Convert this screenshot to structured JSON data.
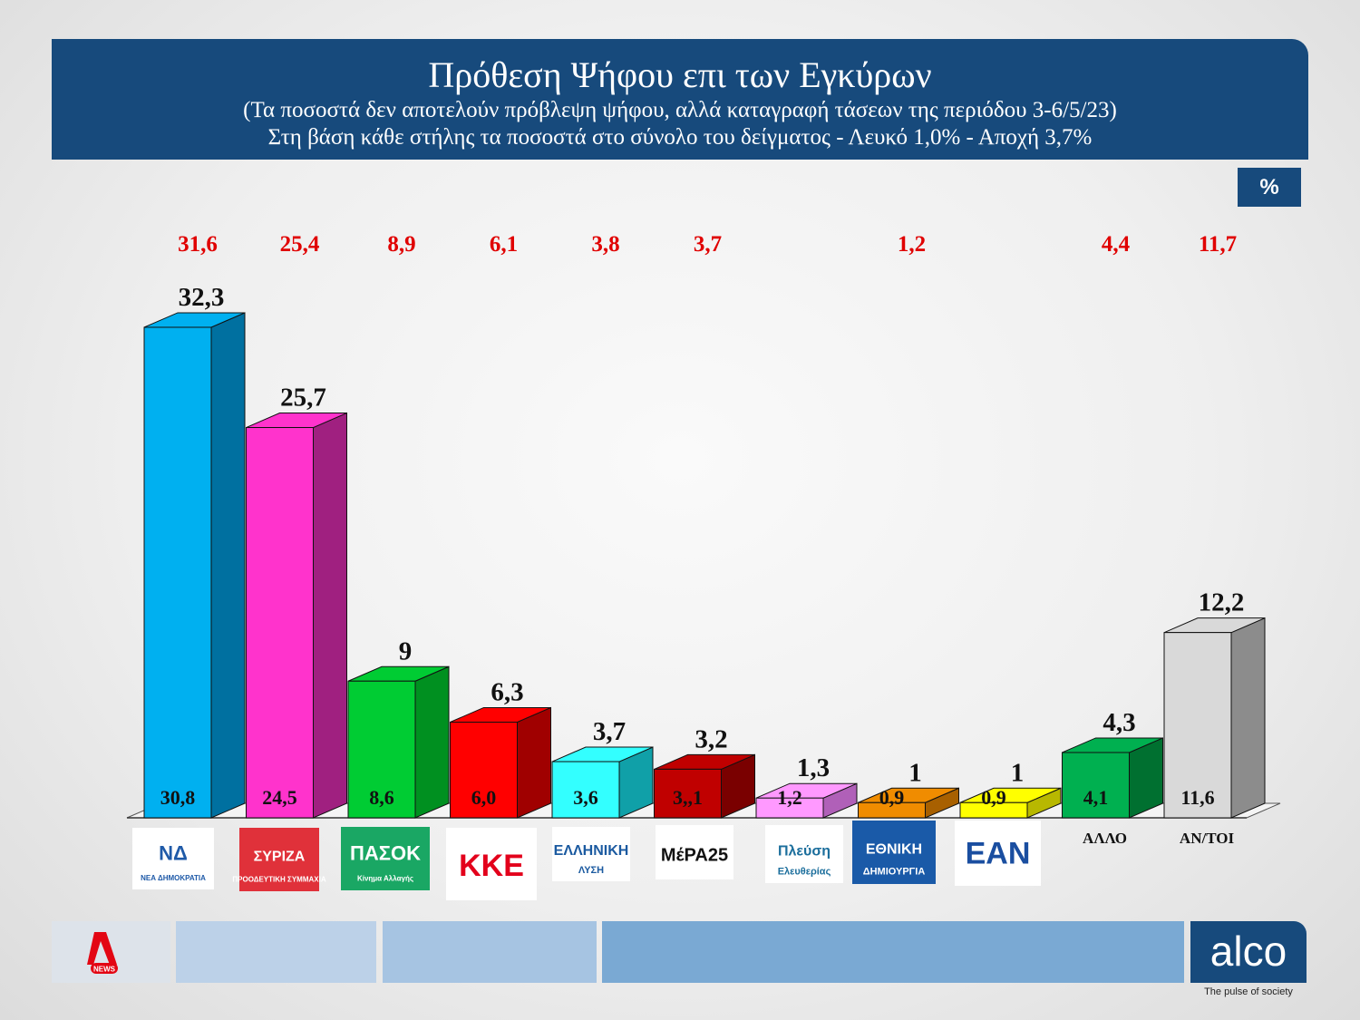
{
  "header": {
    "title": "Πρόθεση Ψήφου επι των Εγκύρων",
    "subtitle1": "(Τα ποσοστά δεν αποτελούν πρόβλεψη ψήφου, αλλά καταγραφή τάσεων της περιόδου  3-6/5/23)",
    "subtitle2": "Στη βάση κάθε στήλης τα ποσοστά στο σύνολο του δείγματος - Λευκό 1,0% - Αποχή 3,7%"
  },
  "unit_badge": "%",
  "chart_data": {
    "type": "bar",
    "categories": [
      "ΝΔ",
      "ΣΥΡΙΖΑ",
      "ΠΑΣΟΚ",
      "ΚΚΕ",
      "ΕΛΛΗΝΙΚΗ ΛΥΣΗ",
      "ΜέΡΑ25",
      "Πλεύση Ελευθερίας",
      "ΕΘΝΙΚΗ ΔΗΜΙΟΥΡΓΙΑ",
      "ΕΑΝ",
      "ΑΛΛΟ",
      "ΑΝ/ΤΟΙ"
    ],
    "series": [
      {
        "values": [
          32.3,
          25.7,
          9,
          6.3,
          3.7,
          3.2,
          1.3,
          1,
          1,
          4.3,
          12.2
        ],
        "labels": [
          "32,3",
          "25,7",
          "9",
          "6,3",
          "3,7",
          "3,2",
          "1,3",
          "1",
          "1",
          "4,3",
          "12,2"
        ]
      },
      {
        "values": [
          30.8,
          24.5,
          8.6,
          6.0,
          3.6,
          3.1,
          1.2,
          0.9,
          0.9,
          4.1,
          11.6
        ],
        "labels": [
          "30,8",
          "24,5",
          "8,6",
          "6,0",
          "3,6",
          "3,,1",
          "1,2",
          "0,9",
          "0,9",
          "4,1",
          "11,6"
        ]
      },
      {
        "values": [
          31.6,
          25.4,
          8.9,
          6.1,
          3.8,
          3.7,
          null,
          1.2,
          null,
          4.4,
          11.7
        ],
        "labels": [
          "31,6",
          "25,4",
          "8,9",
          "6,1",
          "3,8",
          "3,7",
          "",
          "1,2",
          "",
          "4,4",
          "11,7"
        ]
      }
    ],
    "colors": [
      "#00b0f0",
      "#ff33cc",
      "#00cc33",
      "#ff0000",
      "#33ffff",
      "#c00000",
      "#ff99ff",
      "#f08c00",
      "#ffff00",
      "#00b050",
      "#d9d9d9"
    ],
    "side_colors": [
      "#0070a0",
      "#a02080",
      "#009020",
      "#a00000",
      "#10a0a8",
      "#7a0000",
      "#b060b8",
      "#a86000",
      "#b8b800",
      "#007030",
      "#8c8c8c"
    ],
    "text_labels": [
      "",
      "",
      "",
      "",
      "",
      "",
      "",
      "",
      "",
      "ΑΛΛΟ",
      "ΑΝ/ΤΟΙ"
    ],
    "logos": [
      {
        "name": "nd-logo",
        "text1": "ΝΔ",
        "text2": "ΝΕΑ ΔΗΜΟΚΡΑΤΙΑ",
        "bg": "#ffffff",
        "fg": "#1f5aa8"
      },
      {
        "name": "syriza-logo",
        "text1": "ΣΥΡΙΖΑ",
        "text2": "ΠΡΟΟΔΕΥΤΙΚΗ ΣΥΜΜΑΧΙΑ",
        "bg": "#e0313a",
        "fg": "#ffffff"
      },
      {
        "name": "pasok-logo",
        "text1": "ΠΑΣΟΚ",
        "text2": "Κίνημα Αλλαγής",
        "bg": "#1aa764",
        "fg": "#ffffff"
      },
      {
        "name": "kke-logo",
        "text1": "ΚΚΕ",
        "text2": "",
        "bg": "#ffffff",
        "fg": "#e3001b"
      },
      {
        "name": "elliniki-lysi-logo",
        "text1": "ΕΛΛΗΝΙΚΗ",
        "text2": "ΛΥΣΗ",
        "bg": "#ffffff",
        "fg": "#1b5aa0"
      },
      {
        "name": "mera25-logo",
        "text1": "ΜέΡΑ25",
        "text2": "",
        "bg": "#ffffff",
        "fg": "#111111"
      },
      {
        "name": "plefsi-logo",
        "text1": "Πλεύση",
        "text2": "Ελευθερίας",
        "bg": "#ffffff",
        "fg": "#1b6e9c"
      },
      {
        "name": "ethniki-dimiourgia-logo",
        "text1": "ΕΘΝΙΚΗ",
        "text2": "ΔΗΜΙΟΥΡΓΙΑ",
        "bg": "#1a5aa8",
        "fg": "#ffffff"
      },
      {
        "name": "ean-logo",
        "text1": "ΕΑΝ",
        "text2": "",
        "bg": "#ffffff",
        "fg": "#1a4ea0"
      }
    ],
    "ylim": [
      0,
      35
    ]
  },
  "footer": {
    "brand": "alco",
    "tagline": "The pulse of society",
    "alpha_label": "NEWS",
    "colors": [
      "#dde3ea",
      "#bcd1e8",
      "#a6c4e2",
      "#7aa9d3"
    ]
  }
}
